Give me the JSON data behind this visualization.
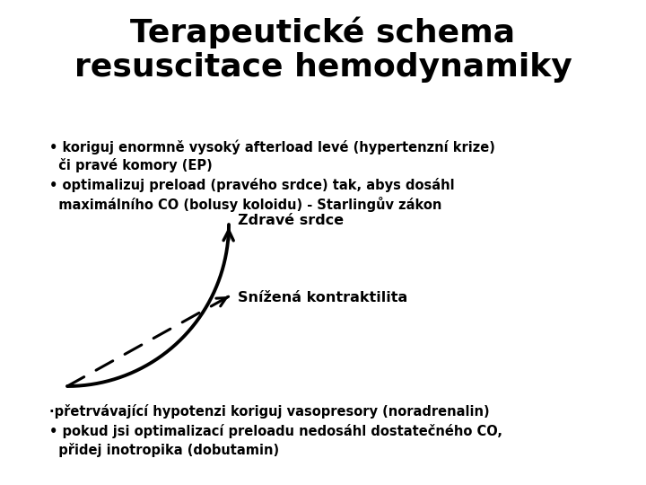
{
  "title_line1": "Terapeutické schema",
  "title_line2": "resuscitace hemodynamiky",
  "title_fontsize": 26,
  "bullet1": "• koriguj enormně vysoký afterload levé (hypertenzní krize)\n  či pravé komory (EP)",
  "bullet2": "• optimalizuj preload (pravého srdce) tak, abys dosáhl\n  maximálního CO (bolusy koloidu) - Starlingův zákon",
  "label_zdrave": "Zdravé srdce",
  "label_snizena": "Snížená kontraktilita",
  "bullet3": "·přetrvávající hypotenzi koriguj vasopresory (noradrenalin)",
  "bullet4": "• pokud jsi optimalizací preloadu nedosáhl dostatečného CO,\n  přidej inotropika (dobutamin)",
  "bg_color": "#ffffff",
  "text_color": "#000000",
  "bullet_fontsize": 10.5,
  "label_fontsize": 11.5
}
